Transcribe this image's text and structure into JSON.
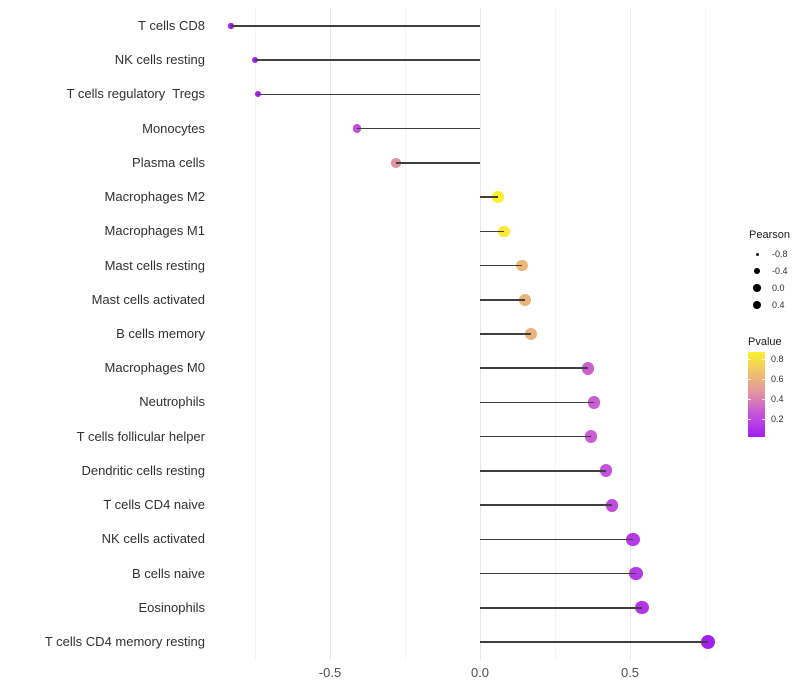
{
  "chart_data": {
    "type": "lollipop",
    "orientation": "horizontal",
    "title": "",
    "xlabel": "",
    "ylabel": "",
    "grid": true,
    "legend_position": "right",
    "categories": [
      "T cells CD8",
      "NK cells resting",
      "T cells regulatory  Tregs",
      "Monocytes",
      "Plasma cells",
      "Macrophages M2",
      "Macrophages M1",
      "Mast cells resting",
      "Mast cells activated",
      "B cells memory",
      "Macrophages M0",
      "Neutrophils",
      "T cells follicular helper",
      "Dendritic cells resting",
      "T cells CD4 naive",
      "NK cells activated",
      "B cells naive",
      "Eosinophils",
      "T cells CD4 memory resting"
    ],
    "series": [
      {
        "name": "Pearson",
        "values": [
          -0.83,
          -0.75,
          -0.74,
          -0.41,
          -0.28,
          0.06,
          0.08,
          0.14,
          0.15,
          0.17,
          0.36,
          0.38,
          0.37,
          0.42,
          0.44,
          0.51,
          0.52,
          0.54,
          0.76
        ]
      },
      {
        "name": "Pvalue",
        "values": [
          0.02,
          0.03,
          0.03,
          0.22,
          0.46,
          0.88,
          0.84,
          0.63,
          0.61,
          0.6,
          0.29,
          0.28,
          0.28,
          0.24,
          0.21,
          0.13,
          0.13,
          0.11,
          0.02
        ]
      }
    ],
    "x_axis": {
      "tick_labels": [
        "-0.5",
        "0.0",
        "0.5"
      ],
      "major_ticks": [
        -0.5,
        0.0,
        0.5
      ],
      "minor_ticks": [
        -0.75,
        -0.25,
        0.25,
        0.75
      ],
      "xlim": [
        -0.91,
        0.79
      ]
    },
    "legends": {
      "size": {
        "title": "Pearson",
        "labels": [
          "-0.8",
          "-0.4",
          "0.0",
          "0.4"
        ],
        "values": [
          -0.8,
          -0.4,
          0.0,
          0.4
        ]
      },
      "color": {
        "title": "Pvalue",
        "labels": [
          "0.8",
          "0.6",
          "0.4",
          "0.2"
        ],
        "values": [
          0.8,
          0.6,
          0.4,
          0.2
        ],
        "bar_range": [
          0.015,
          0.875
        ],
        "gradient_stops": [
          {
            "pos": 0.0,
            "color": "#a21ef5"
          },
          {
            "pos": 0.28,
            "color": "#c756d8"
          },
          {
            "pos": 0.52,
            "color": "#e294a2"
          },
          {
            "pos": 0.75,
            "color": "#f0bf6d"
          },
          {
            "pos": 1.0,
            "color": "#fbf12d"
          }
        ]
      }
    },
    "colors": {
      "background": "#ffffff",
      "stem": "#3f3f3f",
      "grid_major": "#e7e7e7",
      "grid_minor": "#f4f4f4",
      "axis_text_x": "#4d4d4d",
      "axis_text_y": "#303030",
      "legend_title": "#1a1a1a",
      "legend_text": "#303030",
      "legend_dot": "#000000"
    }
  }
}
